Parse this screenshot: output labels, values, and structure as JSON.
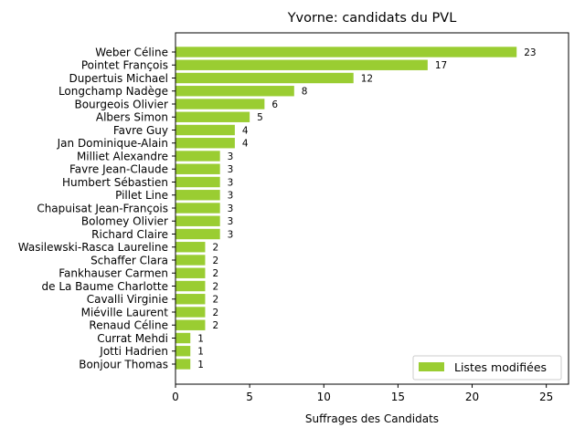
{
  "chart_data": {
    "type": "bar",
    "orientation": "horizontal",
    "title": "Yvorne: candidats du PVL",
    "xlabel": "Suffrages des Candidats",
    "ylabel": "",
    "xlim": [
      0,
      26.5
    ],
    "xticks": [
      0,
      5,
      10,
      15,
      20,
      25
    ],
    "grid": false,
    "legend_position": "lower-right",
    "bar_color": "#9acd32",
    "series": [
      {
        "name": "Listes modifiées",
        "categories": [
          "Weber Céline",
          "Pointet François",
          "Dupertuis Michael",
          "Longchamp Nadège",
          "Bourgeois Olivier",
          "Albers Simon",
          "Favre Guy",
          "Jan Dominique-Alain",
          "Milliet Alexandre",
          "Favre Jean-Claude",
          "Humbert Sébastien",
          "Pillet Line",
          "Chapuisat Jean-François",
          "Bolomey Olivier",
          "Richard Claire",
          "Wasilewski-Rasca Laureline",
          "Schaffer Clara",
          "Fankhauser Carmen",
          "de La Baume Charlotte",
          "Cavalli Virginie",
          "Miéville Laurent",
          "Renaud Céline",
          "Currat Mehdi",
          "Jotti Hadrien",
          "Bonjour Thomas"
        ],
        "values": [
          23,
          17,
          12,
          8,
          6,
          5,
          4,
          4,
          3,
          3,
          3,
          3,
          3,
          3,
          3,
          2,
          2,
          2,
          2,
          2,
          2,
          2,
          1,
          1,
          1
        ]
      }
    ]
  }
}
